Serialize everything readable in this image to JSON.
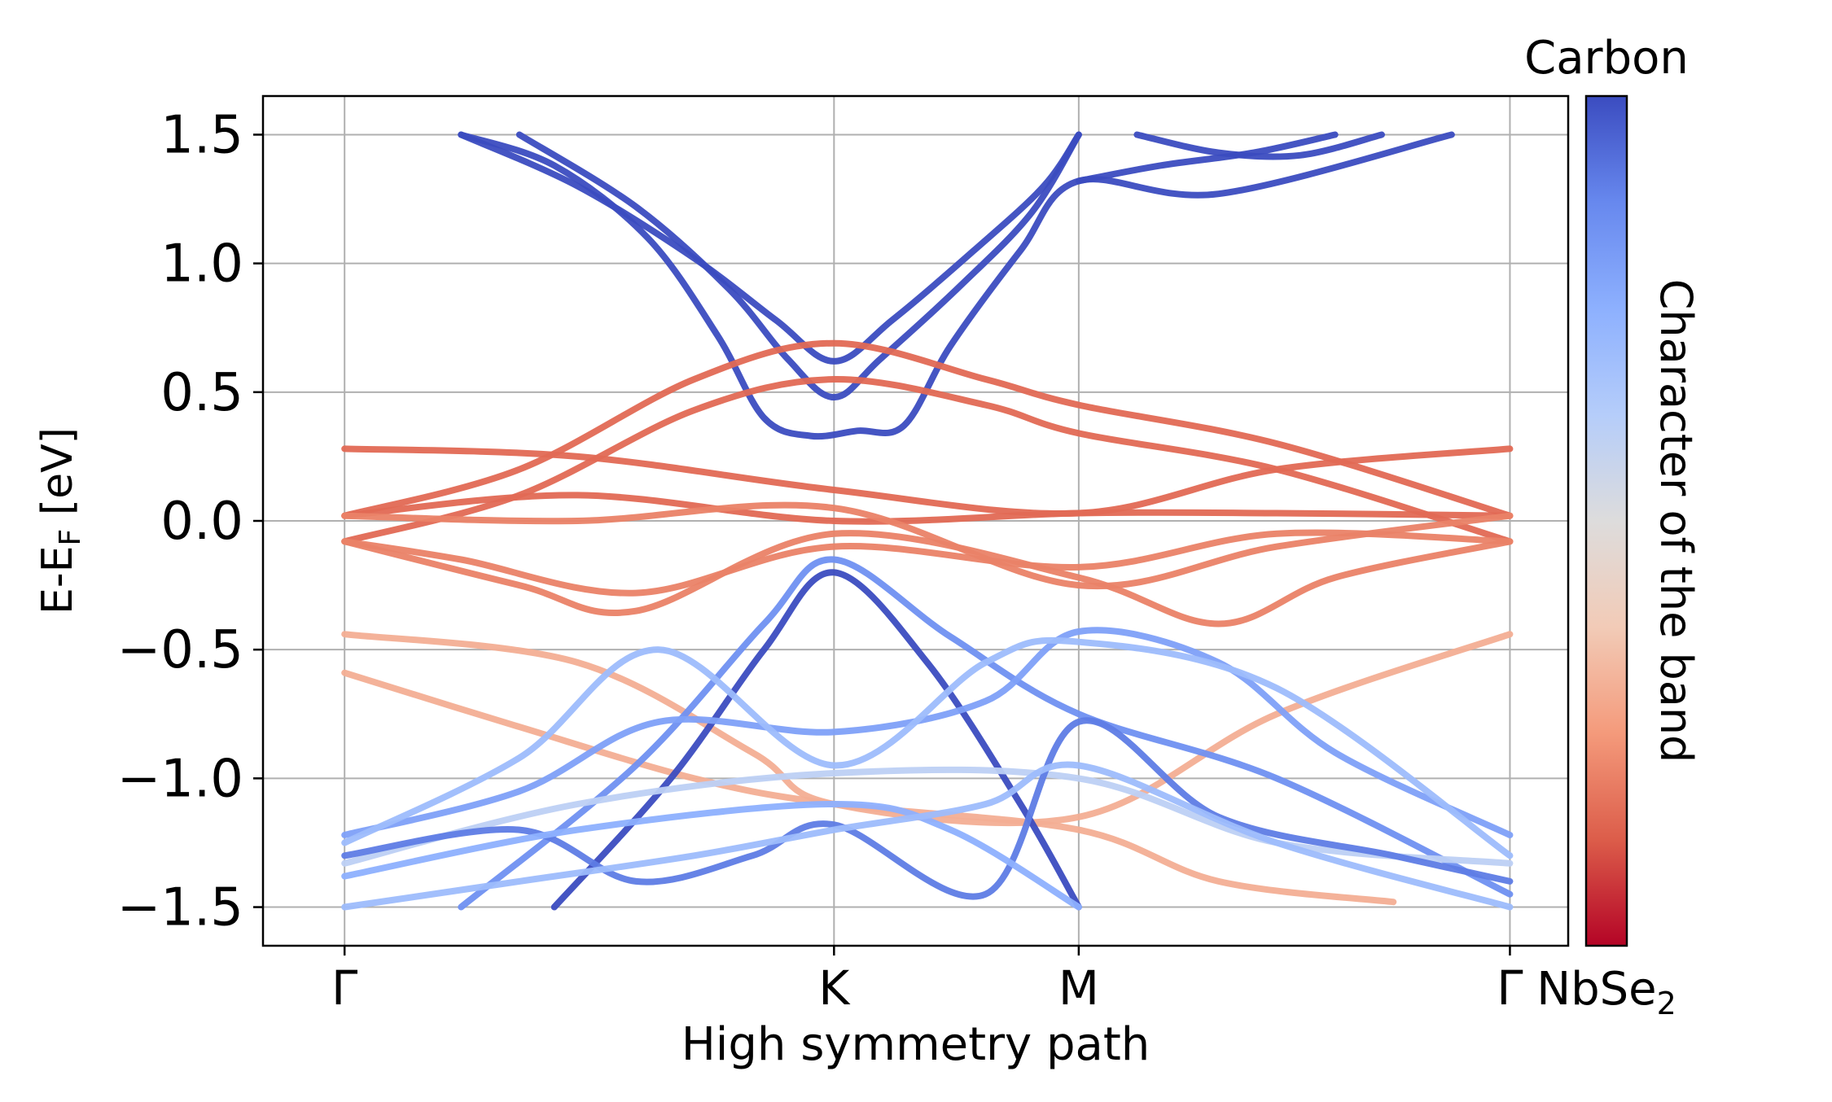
{
  "chart_data": {
    "type": "line",
    "xlabel": "High symmetry path",
    "ylabel": "E-E",
    "ylabel_sub": "F",
    "ylabel_unit": " [eV]",
    "ylim": [
      -1.65,
      1.65
    ],
    "xlim": [
      -0.07,
      1.05
    ],
    "yticks": [
      1.5,
      1.0,
      0.5,
      0.0,
      -0.5,
      -1.0,
      -1.5
    ],
    "ytick_labels": [
      "1.5",
      "1.0",
      "0.5",
      "0.0",
      "−0.5",
      "−1.0",
      "−1.5"
    ],
    "xticks": [
      {
        "pos": 0.0,
        "label": "Γ"
      },
      {
        "pos": 0.42,
        "label": "K"
      },
      {
        "pos": 0.63,
        "label": "M"
      },
      {
        "pos": 1.0,
        "label": "Γ"
      }
    ],
    "grid": true,
    "colorbar": {
      "cmap": "coolwarm",
      "label": "Character of the band",
      "top_label": "Carbon",
      "bottom_label": "NbSe",
      "bottom_label_sub": "2",
      "colors": [
        "#b40426",
        "#dc5d4a",
        "#f49a7b",
        "#f2cbb7",
        "#dddcdc",
        "#b5cdfa",
        "#8db0fe",
        "#6788ee",
        "#3b4cc0"
      ]
    },
    "series": [
      {
        "c": 1.0,
        "points": [
          [
            0.1,
            1.5
          ],
          [
            0.2,
            1.3
          ],
          [
            0.3,
            1.02
          ],
          [
            0.37,
            0.78
          ],
          [
            0.42,
            0.62
          ],
          [
            0.47,
            0.78
          ],
          [
            0.54,
            1.05
          ],
          [
            0.6,
            1.3
          ],
          [
            0.63,
            1.5
          ]
        ]
      },
      {
        "c": 1.0,
        "points": [
          [
            0.15,
            1.5
          ],
          [
            0.25,
            1.22
          ],
          [
            0.33,
            0.9
          ],
          [
            0.38,
            0.63
          ],
          [
            0.42,
            0.48
          ],
          [
            0.46,
            0.63
          ],
          [
            0.53,
            0.92
          ],
          [
            0.59,
            1.2
          ],
          [
            0.63,
            1.5
          ]
        ]
      },
      {
        "c": 1.0,
        "points": [
          [
            0.1,
            1.5
          ],
          [
            0.18,
            1.38
          ],
          [
            0.26,
            1.1
          ],
          [
            0.32,
            0.72
          ],
          [
            0.36,
            0.4
          ],
          [
            0.4,
            0.33
          ],
          [
            0.44,
            0.35
          ],
          [
            0.48,
            0.37
          ],
          [
            0.52,
            0.68
          ],
          [
            0.58,
            1.05
          ],
          [
            0.63,
            1.32
          ],
          [
            0.75,
            1.27
          ],
          [
            0.95,
            1.5
          ]
        ]
      },
      {
        "c": 1.0,
        "points": [
          [
            0.63,
            1.32
          ],
          [
            0.7,
            1.38
          ],
          [
            0.78,
            1.43
          ],
          [
            0.85,
            1.5
          ]
        ]
      },
      {
        "c": 1.0,
        "points": [
          [
            0.68,
            1.5
          ],
          [
            0.75,
            1.43
          ],
          [
            0.82,
            1.42
          ],
          [
            0.89,
            1.5
          ]
        ]
      },
      {
        "c": 0.15,
        "points": [
          [
            0.0,
            0.28
          ],
          [
            0.2,
            0.25
          ],
          [
            0.42,
            0.12
          ],
          [
            0.63,
            0.03
          ],
          [
            0.8,
            0.2
          ],
          [
            1.0,
            0.28
          ]
        ]
      },
      {
        "c": 0.15,
        "points": [
          [
            0.0,
            0.02
          ],
          [
            0.15,
            0.2
          ],
          [
            0.3,
            0.55
          ],
          [
            0.42,
            0.69
          ],
          [
            0.55,
            0.55
          ],
          [
            0.63,
            0.45
          ],
          [
            0.8,
            0.3
          ],
          [
            1.0,
            0.02
          ]
        ]
      },
      {
        "c": 0.15,
        "points": [
          [
            0.0,
            -0.08
          ],
          [
            0.15,
            0.1
          ],
          [
            0.3,
            0.43
          ],
          [
            0.42,
            0.55
          ],
          [
            0.55,
            0.45
          ],
          [
            0.63,
            0.34
          ],
          [
            0.8,
            0.2
          ],
          [
            1.0,
            -0.08
          ]
        ]
      },
      {
        "c": 0.15,
        "points": [
          [
            0.0,
            0.02
          ],
          [
            0.2,
            0.1
          ],
          [
            0.42,
            0.0
          ],
          [
            0.63,
            0.03
          ],
          [
            0.8,
            0.03
          ],
          [
            1.0,
            0.02
          ]
        ]
      },
      {
        "c": 0.2,
        "points": [
          [
            0.0,
            -0.08
          ],
          [
            0.15,
            -0.25
          ],
          [
            0.25,
            -0.35
          ],
          [
            0.42,
            -0.05
          ],
          [
            0.63,
            -0.22
          ],
          [
            0.75,
            -0.4
          ],
          [
            0.85,
            -0.22
          ],
          [
            1.0,
            -0.08
          ]
        ]
      },
      {
        "c": 0.2,
        "points": [
          [
            0.0,
            -0.08
          ],
          [
            0.1,
            -0.15
          ],
          [
            0.25,
            -0.28
          ],
          [
            0.42,
            -0.1
          ],
          [
            0.63,
            -0.18
          ],
          [
            0.8,
            -0.05
          ],
          [
            1.0,
            -0.08
          ]
        ]
      },
      {
        "c": 0.2,
        "points": [
          [
            0.0,
            0.02
          ],
          [
            0.2,
            0.0
          ],
          [
            0.42,
            0.05
          ],
          [
            0.63,
            -0.25
          ],
          [
            0.8,
            -0.1
          ],
          [
            1.0,
            0.02
          ]
        ]
      },
      {
        "c": 0.3,
        "points": [
          [
            0.0,
            -0.44
          ],
          [
            0.2,
            -0.55
          ],
          [
            0.35,
            -0.9
          ],
          [
            0.42,
            -1.1
          ],
          [
            0.63,
            -1.15
          ],
          [
            0.8,
            -0.75
          ],
          [
            1.0,
            -0.44
          ]
        ]
      },
      {
        "c": 0.3,
        "points": [
          [
            0.0,
            -0.59
          ],
          [
            0.15,
            -0.8
          ],
          [
            0.3,
            -1.0
          ],
          [
            0.42,
            -1.1
          ],
          [
            0.63,
            -1.2
          ],
          [
            0.75,
            -1.4
          ],
          [
            0.9,
            -1.48
          ]
        ]
      },
      {
        "c": 1.0,
        "points": [
          [
            0.18,
            -1.5
          ],
          [
            0.28,
            -1.0
          ],
          [
            0.36,
            -0.5
          ],
          [
            0.42,
            -0.2
          ],
          [
            0.5,
            -0.55
          ],
          [
            0.58,
            -1.1
          ],
          [
            0.63,
            -1.5
          ]
        ]
      },
      {
        "c": 0.85,
        "points": [
          [
            0.1,
            -1.5
          ],
          [
            0.25,
            -0.95
          ],
          [
            0.36,
            -0.4
          ],
          [
            0.42,
            -0.15
          ],
          [
            0.52,
            -0.45
          ],
          [
            0.63,
            -0.75
          ],
          [
            0.8,
            -1.0
          ],
          [
            1.0,
            -1.45
          ]
        ]
      },
      {
        "c": 0.8,
        "points": [
          [
            0.0,
            -1.22
          ],
          [
            0.15,
            -1.05
          ],
          [
            0.27,
            -0.78
          ],
          [
            0.42,
            -0.82
          ],
          [
            0.55,
            -0.7
          ],
          [
            0.63,
            -0.43
          ],
          [
            0.75,
            -0.55
          ],
          [
            0.85,
            -0.9
          ],
          [
            1.0,
            -1.22
          ]
        ]
      },
      {
        "c": 0.7,
        "points": [
          [
            0.0,
            -1.25
          ],
          [
            0.15,
            -0.92
          ],
          [
            0.27,
            -0.5
          ],
          [
            0.42,
            -0.95
          ],
          [
            0.55,
            -0.55
          ],
          [
            0.63,
            -0.47
          ],
          [
            0.8,
            -0.65
          ],
          [
            1.0,
            -1.3
          ]
        ]
      },
      {
        "c": 0.6,
        "points": [
          [
            0.0,
            -1.33
          ],
          [
            0.2,
            -1.1
          ],
          [
            0.42,
            -0.98
          ],
          [
            0.63,
            -1.0
          ],
          [
            0.8,
            -1.25
          ],
          [
            1.0,
            -1.33
          ]
        ]
      },
      {
        "c": 0.9,
        "points": [
          [
            0.0,
            -1.3
          ],
          [
            0.15,
            -1.2
          ],
          [
            0.25,
            -1.4
          ],
          [
            0.35,
            -1.3
          ],
          [
            0.42,
            -1.18
          ],
          [
            0.55,
            -1.45
          ],
          [
            0.63,
            -0.78
          ],
          [
            0.75,
            -1.15
          ],
          [
            0.9,
            -1.3
          ],
          [
            1.0,
            -1.4
          ]
        ]
      },
      {
        "c": 0.75,
        "points": [
          [
            0.0,
            -1.38
          ],
          [
            0.2,
            -1.2
          ],
          [
            0.42,
            -1.1
          ],
          [
            0.52,
            -1.2
          ],
          [
            0.63,
            -1.5
          ]
        ]
      },
      {
        "c": 0.7,
        "points": [
          [
            0.0,
            -1.5
          ],
          [
            0.15,
            -1.4
          ],
          [
            0.3,
            -1.3
          ],
          [
            0.42,
            -1.2
          ],
          [
            0.55,
            -1.1
          ],
          [
            0.63,
            -0.95
          ],
          [
            0.8,
            -1.25
          ],
          [
            1.0,
            -1.5
          ]
        ]
      }
    ]
  }
}
